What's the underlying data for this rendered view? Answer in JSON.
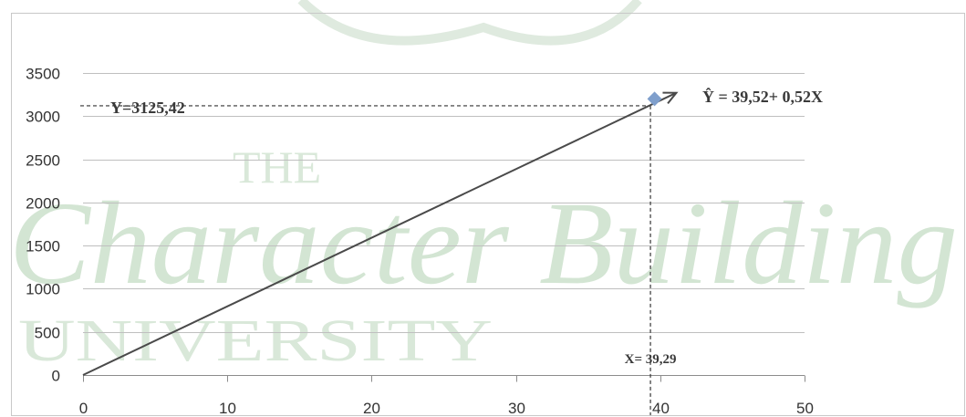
{
  "chart_data": {
    "type": "line",
    "title": "",
    "xlabel": "",
    "ylabel": "",
    "xlim": [
      0,
      50
    ],
    "ylim": [
      0,
      3500
    ],
    "x_ticks": [
      0,
      10,
      20,
      30,
      40,
      50
    ],
    "y_ticks": [
      0,
      500,
      1000,
      1500,
      2000,
      2500,
      3000,
      3500
    ],
    "grid": "horizontal",
    "legend": "none",
    "series": [
      {
        "values": [
          {
            "x": 0,
            "y": 0
          },
          {
            "x": 39.29,
            "y": 3125.42
          }
        ],
        "color": "#4a4a4a"
      }
    ],
    "point": {
      "x": 39.29,
      "y": 3125.42,
      "color": "#7f9fcc"
    },
    "annotations": {
      "equation": "Ŷ = 39,52+ 0,52X",
      "y_label": "Y=3125,42",
      "x_label": "X= 39,29"
    }
  },
  "watermark": {
    "line1": "THE",
    "line2": "Character Building",
    "line3": "UNIVERSITY",
    "color": "#d3e5d3"
  }
}
